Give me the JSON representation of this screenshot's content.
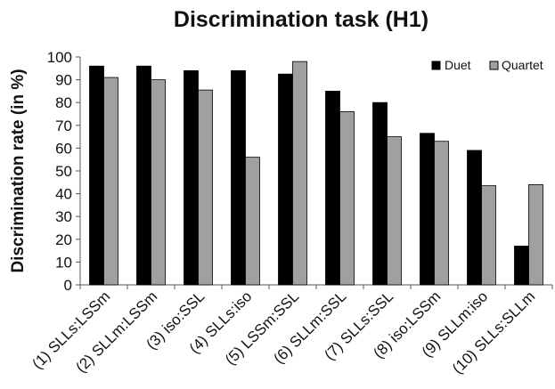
{
  "chart_data": {
    "type": "bar",
    "title": "Discrimination task (H1)",
    "xlabel": "",
    "ylabel": "Discrimination rate (in %)",
    "ylim": [
      0,
      100
    ],
    "yticks": [
      0,
      10,
      20,
      30,
      40,
      50,
      60,
      70,
      80,
      90,
      100
    ],
    "grid": false,
    "legend_position": "top-right",
    "categories": [
      "(1) SLLs:LSSm",
      "(2) SLLm:LSSm",
      "(3) iso:SSL",
      "(4) SLLs:iso",
      "(5) LSSm:SSL",
      "(6) SLLm:SSL",
      "(7) SLLs:SSL",
      "(8) iso:LSSm",
      "(9) SLLm:iso",
      "(10) SLLs:SLLm"
    ],
    "series": [
      {
        "name": "Duet",
        "color": "#000000",
        "values": [
          96,
          96,
          94,
          94,
          92.5,
          85,
          80,
          66.5,
          59,
          17
        ]
      },
      {
        "name": "Quartet",
        "color": "#a0a0a0",
        "values": [
          91,
          90,
          85.5,
          56,
          98,
          76,
          65,
          63,
          43.5,
          44
        ]
      }
    ]
  }
}
